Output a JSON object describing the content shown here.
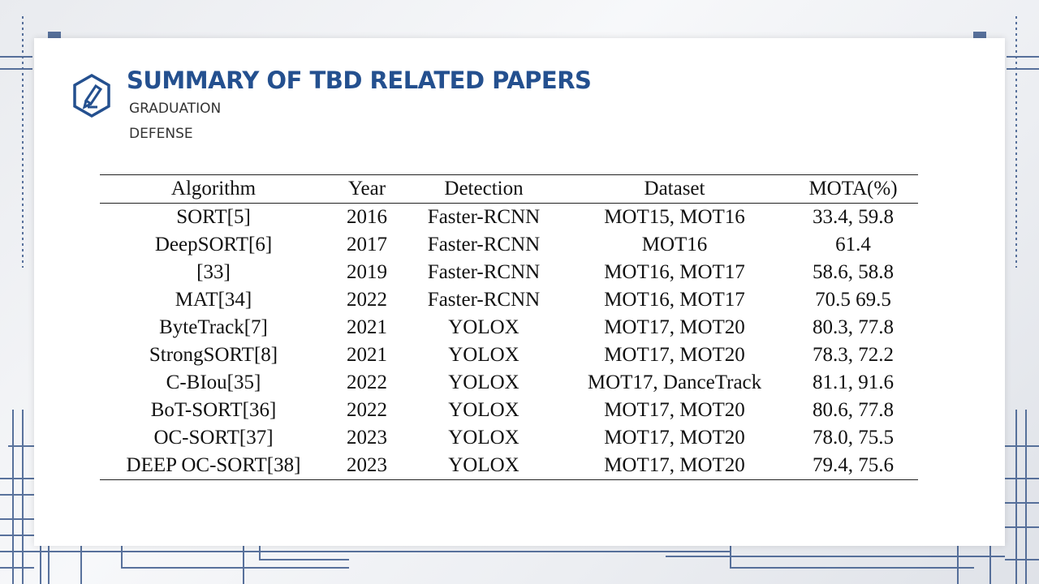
{
  "slide": {
    "title": "SUMMARY OF TBD RELATED PAPERS",
    "subtitle_line1": "GRADUATION",
    "subtitle_line2": "DEFENSE",
    "icon": "pencil-hexagon-icon",
    "accent_color": "#24508f"
  },
  "table": {
    "headers": [
      "Algorithm",
      "Year",
      "Detection",
      "Dataset",
      "MOTA(%)"
    ],
    "rows": [
      [
        "SORT[5]",
        "2016",
        "Faster-RCNN",
        "MOT15, MOT16",
        "33.4, 59.8"
      ],
      [
        "DeepSORT[6]",
        "2017",
        "Faster-RCNN",
        "MOT16",
        "61.4"
      ],
      [
        "[33]",
        "2019",
        "Faster-RCNN",
        "MOT16, MOT17",
        "58.6, 58.8"
      ],
      [
        "MAT[34]",
        "2022",
        "Faster-RCNN",
        "MOT16, MOT17",
        "70.5 69.5"
      ],
      [
        "ByteTrack[7]",
        "2021",
        "YOLOX",
        "MOT17, MOT20",
        "80.3, 77.8"
      ],
      [
        "StrongSORT[8]",
        "2021",
        "YOLOX",
        "MOT17, MOT20",
        "78.3, 72.2"
      ],
      [
        "C-BIou[35]",
        "2022",
        "YOLOX",
        "MOT17, DanceTrack",
        "81.1, 91.6"
      ],
      [
        "BoT-SORT[36]",
        "2022",
        "YOLOX",
        "MOT17, MOT20",
        "80.6, 77.8"
      ],
      [
        "OC-SORT[37]",
        "2023",
        "YOLOX",
        "MOT17, MOT20",
        "78.0, 75.5"
      ],
      [
        "DEEP OC-SORT[38]",
        "2023",
        "YOLOX",
        "MOT17, MOT20",
        "79.4, 75.6"
      ]
    ]
  }
}
